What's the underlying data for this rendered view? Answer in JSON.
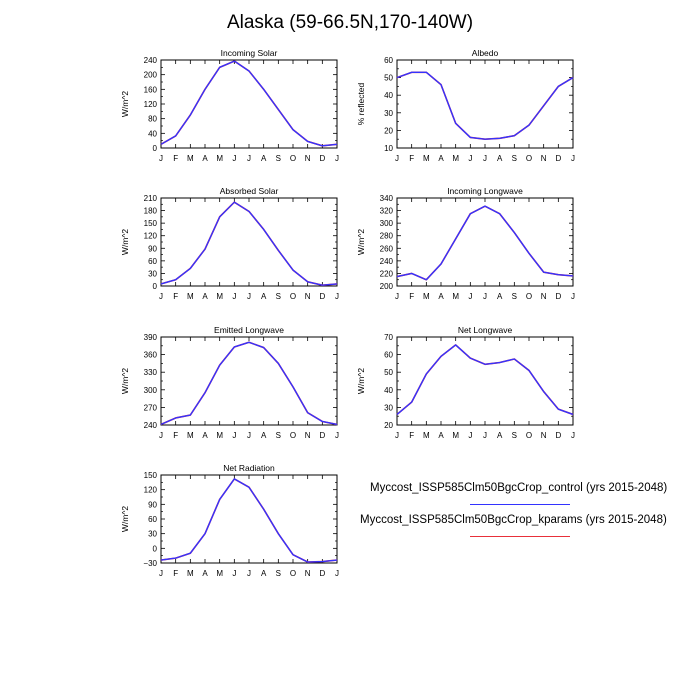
{
  "title": "Alaska (59-66.5N,170-140W)",
  "months": [
    "J",
    "F",
    "M",
    "A",
    "M",
    "J",
    "J",
    "A",
    "S",
    "O",
    "N",
    "D",
    "J"
  ],
  "colors": {
    "control": "#3333ff",
    "kparams": "#e8303a"
  },
  "legend": [
    {
      "label": "Myccost_ISSP585Clm50BgcCrop_control (yrs 2015-2048)",
      "color": "#3333ff"
    },
    {
      "label": "Myccost_ISSP585Clm50BgcCrop_kparams (yrs 2015-2048)",
      "color": "#e8303a"
    }
  ],
  "chart_data": [
    {
      "type": "line",
      "title": "Incoming Solar",
      "ylabel": "W/m^2",
      "ylim": [
        0,
        240
      ],
      "yticks": [
        0,
        40,
        80,
        120,
        160,
        200,
        240
      ],
      "yticklabels": [
        "0",
        "40",
        "80",
        "120",
        "160",
        "200",
        "240"
      ],
      "series": [
        {
          "key": "control",
          "values": [
            10,
            33,
            90,
            160,
            220,
            237,
            210,
            160,
            105,
            50,
            18,
            6,
            10
          ]
        },
        {
          "key": "kparams",
          "values": [
            10,
            33,
            90,
            160,
            220,
            237,
            210,
            160,
            105,
            50,
            18,
            6,
            10
          ]
        }
      ]
    },
    {
      "type": "line",
      "title": "Albedo",
      "ylabel": "% reflected",
      "ylim": [
        10,
        60
      ],
      "yticks": [
        10,
        20,
        30,
        40,
        50,
        60
      ],
      "yticklabels": [
        "10",
        "20",
        "30",
        "40",
        "50",
        "60"
      ],
      "series": [
        {
          "key": "control",
          "values": [
            50,
            53,
            53,
            46,
            24,
            16,
            15,
            15.5,
            17,
            23,
            34,
            45,
            50
          ]
        },
        {
          "key": "kparams",
          "values": [
            50,
            53,
            53,
            46,
            24,
            16,
            15,
            15.5,
            17,
            23,
            34,
            45,
            50
          ]
        }
      ]
    },
    {
      "type": "line",
      "title": "Absorbed Solar",
      "ylabel": "W/m^2",
      "ylim": [
        0,
        210
      ],
      "yticks": [
        0,
        30,
        60,
        90,
        120,
        150,
        180,
        210
      ],
      "yticklabels": [
        "0",
        "30",
        "60",
        "90",
        "120",
        "150",
        "180",
        "210"
      ],
      "series": [
        {
          "key": "control",
          "values": [
            5,
            15,
            42,
            88,
            165,
            200,
            178,
            135,
            85,
            38,
            10,
            2,
            5
          ]
        },
        {
          "key": "kparams",
          "values": [
            5,
            15,
            42,
            88,
            165,
            200,
            178,
            135,
            85,
            38,
            10,
            2,
            5
          ]
        }
      ]
    },
    {
      "type": "line",
      "title": "Incoming Longwave",
      "ylabel": "W/m^2",
      "ylim": [
        200,
        340
      ],
      "yticks": [
        200,
        220,
        240,
        260,
        280,
        300,
        320,
        340
      ],
      "yticklabels": [
        "200",
        "220",
        "240",
        "260",
        "280",
        "300",
        "320",
        "340"
      ],
      "series": [
        {
          "key": "control",
          "values": [
            215,
            220,
            210,
            235,
            275,
            315,
            327,
            315,
            285,
            252,
            222,
            218,
            216
          ]
        },
        {
          "key": "kparams",
          "values": [
            215,
            220,
            210,
            235,
            275,
            315,
            327,
            315,
            285,
            252,
            222,
            218,
            216
          ]
        }
      ]
    },
    {
      "type": "line",
      "title": "Emitted Longwave",
      "ylabel": "W/m^2",
      "ylim": [
        240,
        390
      ],
      "yticks": [
        240,
        270,
        300,
        330,
        360,
        390
      ],
      "yticklabels": [
        "240",
        "270",
        "300",
        "330",
        "360",
        "390"
      ],
      "series": [
        {
          "key": "control",
          "values": [
            241,
            252,
            257,
            295,
            342,
            373,
            381,
            372,
            345,
            305,
            261,
            246,
            241
          ]
        },
        {
          "key": "kparams",
          "values": [
            241,
            252,
            257,
            295,
            342,
            373,
            381,
            372,
            345,
            305,
            261,
            246,
            241
          ]
        }
      ]
    },
    {
      "type": "line",
      "title": "Net Longwave",
      "ylabel": "W/m^2",
      "ylim": [
        20,
        70
      ],
      "yticks": [
        20,
        30,
        40,
        50,
        60,
        70
      ],
      "yticklabels": [
        "20",
        "30",
        "40",
        "50",
        "60",
        "70"
      ],
      "series": [
        {
          "key": "control",
          "values": [
            26,
            33,
            49,
            59,
            65.5,
            58,
            54.5,
            55.5,
            57.5,
            51,
            39,
            29,
            26
          ]
        },
        {
          "key": "kparams",
          "values": [
            26,
            33,
            49,
            59,
            65.5,
            58,
            54.5,
            55.5,
            57.5,
            51,
            39,
            29,
            26
          ]
        }
      ]
    },
    {
      "type": "line",
      "title": "Net Radiation",
      "ylabel": "W/m^2",
      "ylim": [
        -30,
        150
      ],
      "yticks": [
        -30,
        0,
        30,
        60,
        90,
        120,
        150
      ],
      "yticklabels": [
        "−30",
        "0",
        "30",
        "60",
        "90",
        "120",
        "150"
      ],
      "series": [
        {
          "key": "control",
          "values": [
            -24,
            -20,
            -10,
            30,
            100,
            142,
            125,
            80,
            30,
            -13,
            -28,
            -27,
            -24
          ]
        },
        {
          "key": "kparams",
          "values": [
            -24,
            -20,
            -10,
            30,
            100,
            142,
            125,
            80,
            30,
            -13,
            -28,
            -27,
            -24
          ]
        }
      ]
    }
  ]
}
